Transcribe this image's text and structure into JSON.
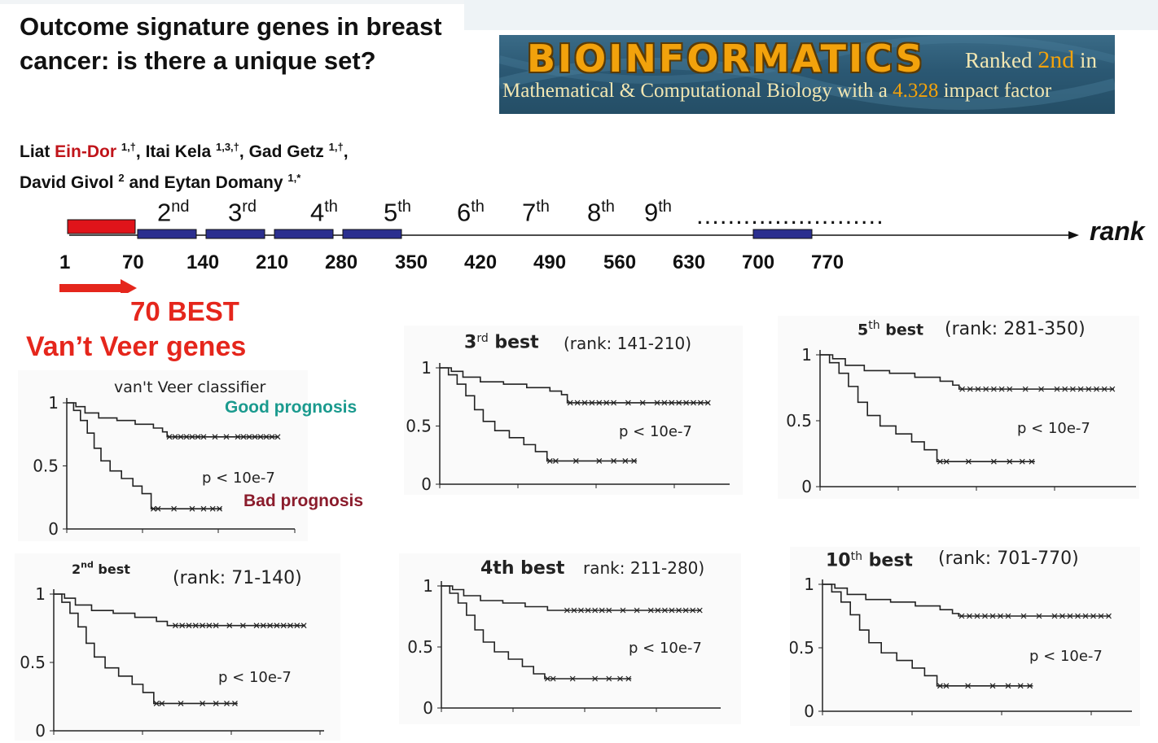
{
  "paper": {
    "title": "Outcome signature genes in breast cancer: is there a unique set?",
    "authors": [
      {
        "first": "Liat ",
        "last": "Ein-Dor",
        "sup": "1,†",
        "sep": ", "
      },
      {
        "first": "Itai ",
        "last": "Kela",
        "sup": "1,3,†",
        "sep": ", "
      },
      {
        "first": "Gad ",
        "last": "Getz",
        "sup": "1,†",
        "sep": ","
      },
      {
        "first": "David ",
        "last": "Givol",
        "sup": "2",
        "sep": " and "
      },
      {
        "first": "Eytan ",
        "last": "Domany",
        "sup": "1,*",
        "sep": ""
      }
    ]
  },
  "banner": {
    "journal": "BIOINFORMATICS",
    "ranked_prefix": "Ranked ",
    "ranked_value": "2nd",
    "ranked_suffix": " in",
    "line2_prefix": "Mathematical & Computational Biology with a ",
    "impact": "4.328",
    "line2_suffix": " impact factor"
  },
  "rank_axis": {
    "label": "rank",
    "ellipsis": "........................",
    "ticks": [
      "1",
      "70",
      "140",
      "210",
      "280",
      "350",
      "420",
      "490",
      "560",
      "630",
      "700",
      "770"
    ],
    "ordinals": [
      {
        "n": "2",
        "s": "nd"
      },
      {
        "n": "3",
        "s": "rd"
      },
      {
        "n": "4",
        "s": "th"
      },
      {
        "n": "5",
        "s": "th"
      },
      {
        "n": "6",
        "s": "th"
      },
      {
        "n": "7",
        "s": "th"
      },
      {
        "n": "8",
        "s": "th"
      },
      {
        "n": "9",
        "s": "th"
      }
    ],
    "first_block_color": "#e0141a",
    "block_color": "#2b2f8f"
  },
  "highlight": {
    "best": "70 BEST",
    "vantveer": "Van’t Veer genes",
    "color": "#e5261c"
  },
  "labels": {
    "good": "Good prognosis",
    "bad": "Bad prognosis"
  },
  "panels": [
    {
      "id": "p1",
      "title_bold": "",
      "title_sup": "",
      "title_rest": "",
      "classifier": "van't Veer classifier",
      "pvalue": "p < 10e-7",
      "yticks": [
        "1",
        "0.5",
        "0"
      ],
      "good_end": 0.73,
      "bad_end": 0.16
    },
    {
      "id": "p2",
      "title_bold": "2",
      "title_sup": "nd",
      "title_best": " best",
      "title_rest": "(rank: 71-140)",
      "pvalue": "p < 10e-7",
      "yticks": [
        "1",
        "0.5",
        "0"
      ],
      "good_end": 0.77,
      "bad_end": 0.2
    },
    {
      "id": "p3",
      "title_bold": "3",
      "title_sup": "rd",
      "title_best": "  best",
      "title_rest": "(rank: 141-210)",
      "pvalue": "p < 10e-7",
      "yticks": [
        "1",
        "0.5",
        "0"
      ],
      "good_end": 0.7,
      "bad_end": 0.2
    },
    {
      "id": "p4",
      "title_bold": "4th best",
      "title_sup": "",
      "title_best": "",
      "title_rest": "rank: 211-280)",
      "pvalue": "p < 10e-7",
      "yticks": [
        "1",
        "0.5",
        "0"
      ],
      "good_end": 0.8,
      "bad_end": 0.24
    },
    {
      "id": "p5",
      "title_bold": "5",
      "title_sup": "th",
      "title_best": " best",
      "title_rest": "(rank: 281-350)",
      "pvalue": "p < 10e-7",
      "yticks": [
        "1",
        "0.5",
        "0"
      ],
      "good_end": 0.74,
      "bad_end": 0.19
    },
    {
      "id": "p6",
      "title_bold": "10",
      "title_sup": "th",
      "title_best": "  best",
      "title_rest": "(rank: 701-770)",
      "pvalue": "p < 10e-7",
      "yticks": [
        "1",
        "0.5",
        "0"
      ],
      "good_end": 0.75,
      "bad_end": 0.2
    }
  ]
}
